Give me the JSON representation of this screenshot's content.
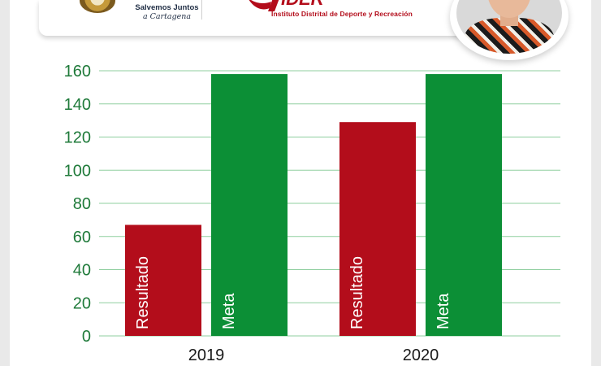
{
  "header": {
    "alcaldia_line1": "Salvemos Juntos",
    "alcaldia_line2": "a Cartagena",
    "idea_logo_text": "IDER",
    "idea_subtitle": "Instituto Distrital de Deporte y Recreación"
  },
  "colors": {
    "resultado": "#b30d1b",
    "meta": "#0c8f36",
    "axis_text": "#1f7a3a",
    "grid": "#8fcf9f",
    "background": "#ffffff"
  },
  "chart_data": {
    "type": "bar",
    "categories": [
      "2019",
      "2020"
    ],
    "series": [
      {
        "name": "Resultado",
        "values": [
          67,
          129
        ]
      },
      {
        "name": "Meta",
        "values": [
          158,
          158
        ]
      }
    ],
    "yticks": [
      0,
      20,
      40,
      60,
      80,
      100,
      120,
      140,
      160
    ],
    "ylim": [
      0,
      160
    ],
    "grid": true,
    "legend": "none",
    "title": "",
    "xlabel": "",
    "ylabel": ""
  }
}
